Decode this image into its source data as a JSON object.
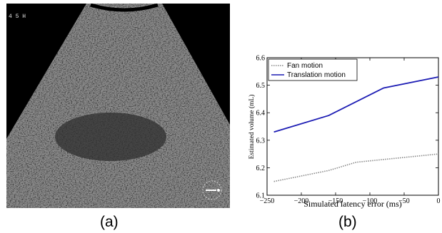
{
  "figure": {
    "panel_a_label": "(a)",
    "panel_b_label": "(b)"
  },
  "ultrasound": {
    "corner_text": "4 5 H",
    "colors": {
      "background": "#000000",
      "tissue": "#8a8a8a",
      "lesion": "#3a3a3a"
    }
  },
  "chart_data": {
    "type": "line",
    "title": "",
    "xlabel": "Simulated latency error (ms)",
    "ylabel": "Estimated volume (mL)",
    "xlim": [
      -250,
      0
    ],
    "ylim": [
      6.1,
      6.6
    ],
    "xticks": [
      -250,
      -200,
      -150,
      -100,
      -50,
      0
    ],
    "yticks": [
      6.1,
      6.2,
      6.3,
      6.4,
      6.5,
      6.6
    ],
    "xtick_labels": [
      "−250",
      "−200",
      "−150",
      "−100",
      "−50",
      "0"
    ],
    "ytick_labels": [
      "6.1",
      "6.2",
      "6.3",
      "6.4",
      "6.5",
      "6.6"
    ],
    "grid": false,
    "legend_position": "top-left",
    "series": [
      {
        "name": "Fan motion",
        "style": "dotted",
        "color": "#888888",
        "x": [
          -240,
          -160,
          -120,
          -80,
          0
        ],
        "values": [
          6.15,
          6.19,
          6.22,
          6.23,
          6.25
        ]
      },
      {
        "name": "Translation motion",
        "style": "solid",
        "color": "#1c1cb4",
        "x": [
          -240,
          -160,
          -80,
          0
        ],
        "values": [
          6.33,
          6.39,
          6.49,
          6.53
        ]
      }
    ]
  }
}
